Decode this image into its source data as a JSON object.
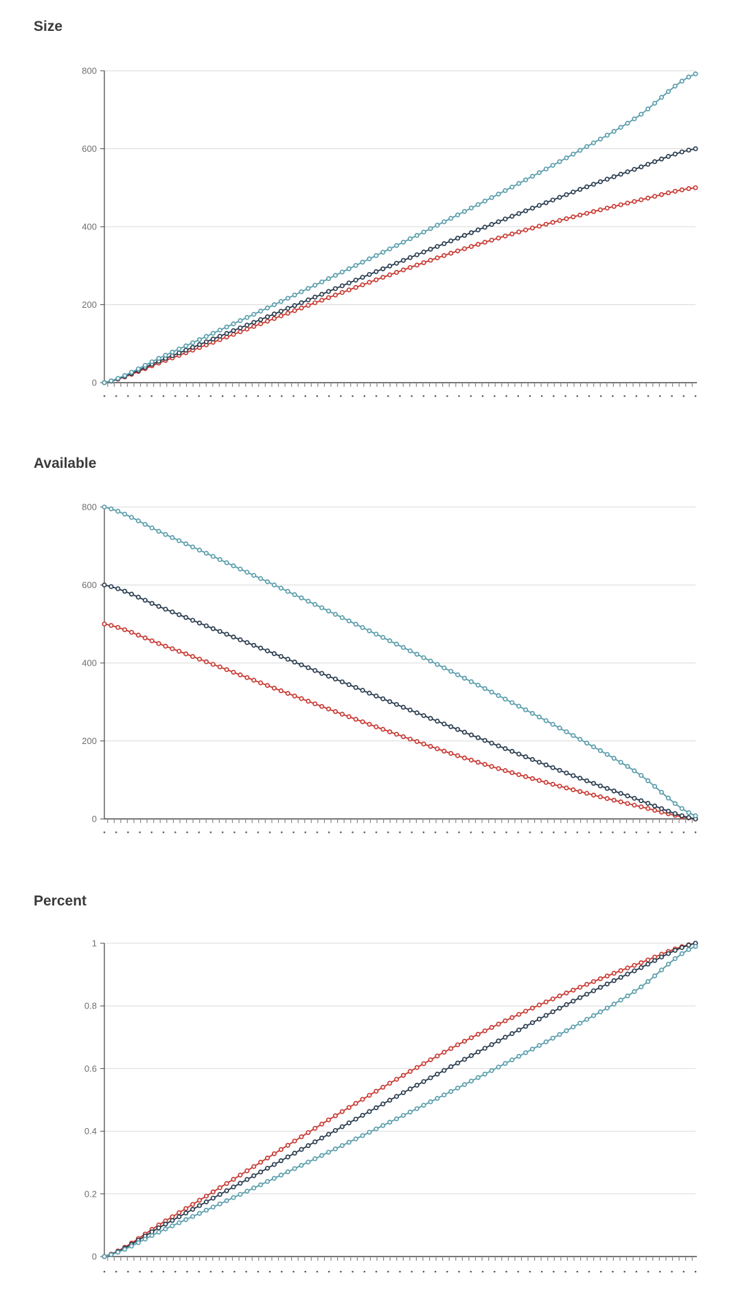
{
  "chart_data": [
    {
      "type": "line",
      "title": "Size",
      "legend": "none",
      "grid": true,
      "marker": "open-circle",
      "points_per_series": 88,
      "x": {
        "labels_visible": false,
        "tick_count": 90,
        "dot_label_count": 51,
        "control_t": [
          0,
          0.1,
          0.2,
          0.3,
          0.4,
          0.5,
          0.6,
          0.7,
          0.8,
          0.9,
          1
        ]
      },
      "y": {
        "min": 0,
        "max": 800,
        "ticks": [
          "0",
          "200",
          "400",
          "600",
          "800"
        ]
      },
      "series": [
        {
          "name": "red",
          "color": "#C93B34",
          "control_values": [
            0,
            55,
            113,
            172,
            230,
            286,
            339,
            386,
            428,
            466,
            500
          ]
        },
        {
          "name": "navy",
          "color": "#2B3E50",
          "control_values": [
            0,
            60,
            122,
            184,
            247,
            310,
            372,
            433,
            493,
            549,
            600
          ]
        },
        {
          "name": "teal",
          "color": "#5B9EAC",
          "control_values": [
            0,
            68,
            138,
            209,
            282,
            356,
            432,
            510,
            592,
            680,
            792
          ]
        }
      ]
    },
    {
      "type": "line",
      "title": "Available",
      "legend": "none",
      "grid": true,
      "marker": "open-circle",
      "points_per_series": 88,
      "x": {
        "labels_visible": false,
        "tick_count": 90,
        "dot_label_count": 51,
        "control_t": [
          0,
          0.1,
          0.2,
          0.3,
          0.4,
          0.5,
          0.6,
          0.7,
          0.8,
          0.9,
          1
        ]
      },
      "y": {
        "min": 0,
        "max": 800,
        "ticks": [
          "0",
          "200",
          "400",
          "600",
          "800"
        ]
      },
      "series": [
        {
          "name": "red",
          "color": "#C93B34",
          "control_values": [
            500,
            445,
            387,
            328,
            270,
            214,
            161,
            114,
            72,
            34,
            0
          ]
        },
        {
          "name": "navy",
          "color": "#2B3E50",
          "control_values": [
            600,
            540,
            478,
            416,
            353,
            290,
            228,
            167,
            107,
            51,
            0
          ]
        },
        {
          "name": "teal",
          "color": "#5B9EAC",
          "control_values": [
            800,
            732,
            662,
            591,
            518,
            444,
            368,
            290,
            208,
            120,
            8
          ]
        }
      ]
    },
    {
      "type": "line",
      "title": "Percent",
      "legend": "none",
      "grid": true,
      "marker": "open-circle",
      "points_per_series": 88,
      "x": {
        "labels_visible": false,
        "tick_count": 90,
        "dot_label_count": 51,
        "control_t": [
          0,
          0.1,
          0.2,
          0.3,
          0.4,
          0.5,
          0.6,
          0.7,
          0.8,
          0.9,
          1
        ]
      },
      "y": {
        "min": 0,
        "max": 1,
        "ticks": [
          "0",
          "0.2",
          "0.4",
          "0.6",
          "0.8",
          "1"
        ]
      },
      "series": [
        {
          "name": "red",
          "color": "#C93B34",
          "control_values": [
            0,
            0.11,
            0.225,
            0.343,
            0.46,
            0.572,
            0.678,
            0.772,
            0.856,
            0.932,
            1
          ]
        },
        {
          "name": "navy",
          "color": "#2B3E50",
          "control_values": [
            0,
            0.1,
            0.203,
            0.307,
            0.412,
            0.517,
            0.62,
            0.722,
            0.822,
            0.915,
            1
          ]
        },
        {
          "name": "teal",
          "color": "#5B9EAC",
          "control_values": [
            0,
            0.085,
            0.172,
            0.261,
            0.352,
            0.445,
            0.54,
            0.638,
            0.74,
            0.85,
            0.99
          ]
        }
      ]
    }
  ],
  "styles": {
    "title_color": "#3b3b3b",
    "axis_label_color": "#6e6e6e",
    "axis_line_color": "#4a4a4a",
    "tick_color": "#858585",
    "gridline_color": "#d9d9d9",
    "dot_label_color": "#5a5a5a",
    "background": "#ffffff"
  }
}
